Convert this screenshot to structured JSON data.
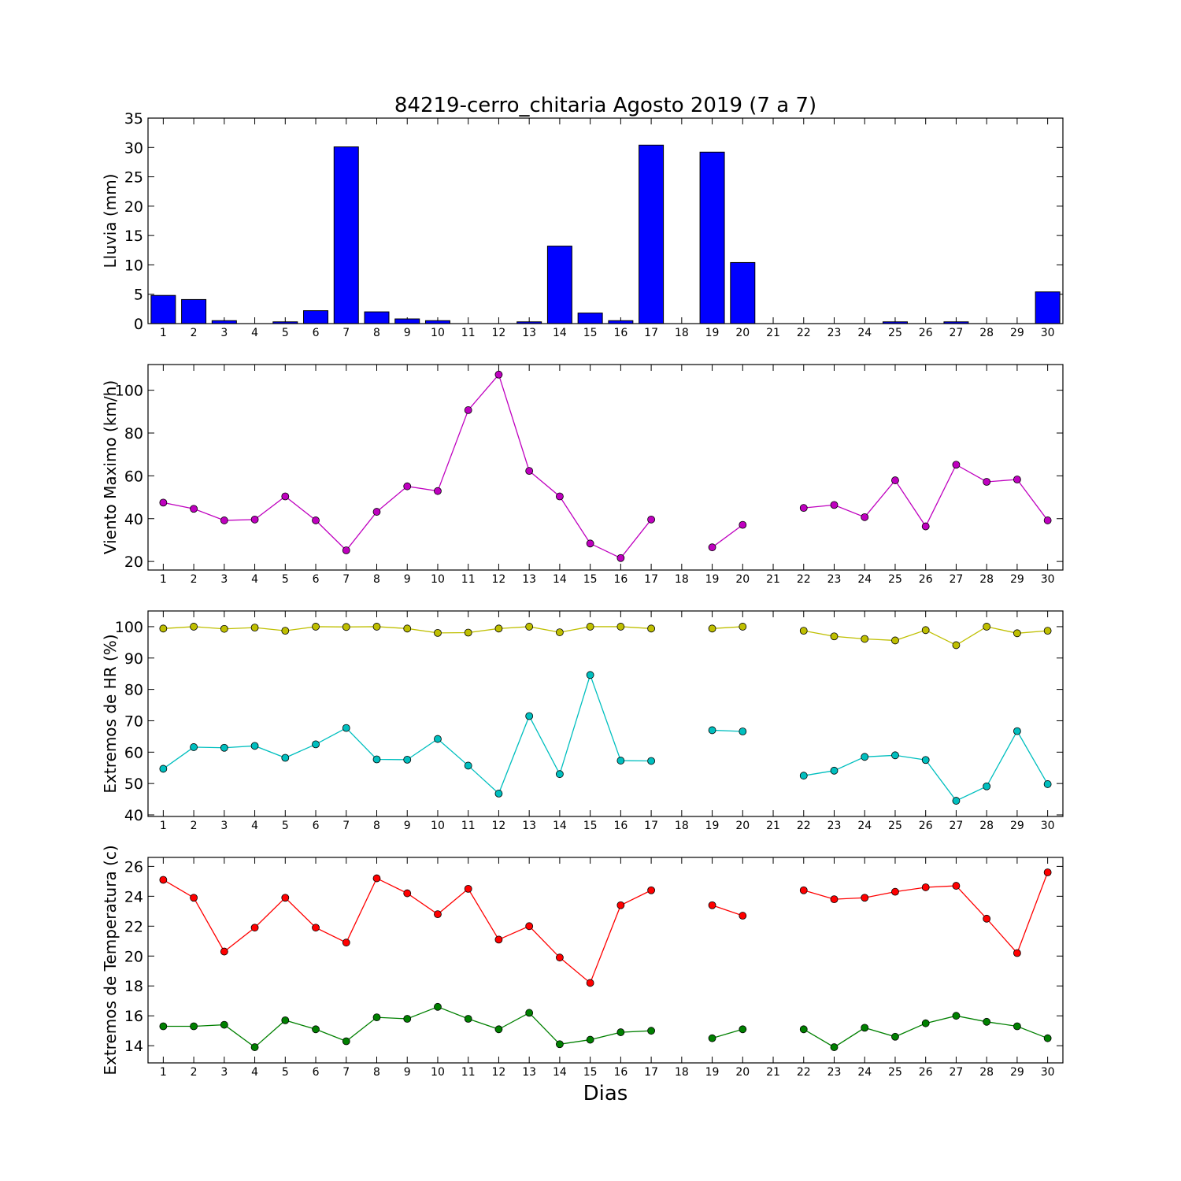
{
  "title": "84219-cerro_chitaria Agosto 2019  (7 a 7)",
  "xlabel": "Dias",
  "chart_data": [
    {
      "type": "bar",
      "ylabel": "Lluvia (mm)",
      "x": [
        1,
        2,
        3,
        4,
        5,
        6,
        7,
        8,
        9,
        10,
        11,
        12,
        13,
        14,
        15,
        16,
        17,
        18,
        19,
        20,
        21,
        22,
        23,
        24,
        25,
        26,
        27,
        28,
        29,
        30
      ],
      "xticks": [
        "1",
        "2",
        "3",
        "4",
        "5",
        "6",
        "7",
        "8",
        "9",
        "10",
        "11",
        "12",
        "13",
        "14",
        "15",
        "16",
        "17",
        "18",
        "19",
        "20",
        "21",
        "22",
        "23",
        "24",
        "25",
        "26",
        "27",
        "28",
        "29",
        "30"
      ],
      "ylim": [
        0,
        35
      ],
      "yticks": [
        0,
        5,
        10,
        15,
        20,
        25,
        30,
        35
      ],
      "series": [
        {
          "color": "#0000ff",
          "values": [
            4.8,
            4.1,
            0.5,
            0,
            0.3,
            2.2,
            30.1,
            2.0,
            0.8,
            0.5,
            0,
            0,
            0.3,
            13.2,
            1.8,
            0.5,
            30.4,
            0,
            29.2,
            10.4,
            0,
            0,
            0,
            0,
            0.3,
            0,
            0.3,
            0,
            0,
            5.4
          ]
        }
      ]
    },
    {
      "type": "line",
      "ylabel": "Viento Maximo (km/h)",
      "x": [
        1,
        2,
        3,
        4,
        5,
        6,
        7,
        8,
        9,
        10,
        11,
        12,
        13,
        14,
        15,
        16,
        17,
        18,
        19,
        20,
        21,
        22,
        23,
        24,
        25,
        26,
        27,
        28,
        29,
        30
      ],
      "xticks": [
        "1",
        "2",
        "3",
        "4",
        "5",
        "6",
        "7",
        "8",
        "9",
        "10",
        "11",
        "12",
        "13",
        "14",
        "15",
        "16",
        "17",
        "18",
        "19",
        "20",
        "21",
        "22",
        "23",
        "24",
        "25",
        "26",
        "27",
        "28",
        "29",
        "30"
      ],
      "ylim": [
        16,
        112
      ],
      "yticks": [
        20,
        40,
        60,
        80,
        100
      ],
      "series": [
        {
          "color": "#bf00bf",
          "values": [
            47.5,
            44.6,
            39.2,
            39.6,
            50.4,
            39.2,
            25.2,
            43.2,
            55.1,
            52.9,
            90.7,
            107.3,
            62.3,
            50.4,
            28.4,
            21.6,
            39.6,
            null,
            26.6,
            37.1,
            null,
            45.0,
            46.4,
            40.7,
            57.9,
            36.4,
            65.2,
            57.2,
            58.3,
            39.2
          ]
        }
      ]
    },
    {
      "type": "line",
      "ylabel": "Extremos de HR (%)",
      "x": [
        1,
        2,
        3,
        4,
        5,
        6,
        7,
        8,
        9,
        10,
        11,
        12,
        13,
        14,
        15,
        16,
        17,
        18,
        19,
        20,
        21,
        22,
        23,
        24,
        25,
        26,
        27,
        28,
        29,
        30
      ],
      "xticks": [
        "1",
        "2",
        "3",
        "4",
        "5",
        "6",
        "7",
        "8",
        "9",
        "10",
        "11",
        "12",
        "13",
        "14",
        "15",
        "16",
        "17",
        "18",
        "19",
        "20",
        "21",
        "22",
        "23",
        "24",
        "25",
        "26",
        "27",
        "28",
        "29",
        "30"
      ],
      "ylim": [
        39.5,
        105
      ],
      "yticks": [
        40,
        50,
        60,
        70,
        80,
        90,
        100
      ],
      "series": [
        {
          "color": "#bfbf00",
          "values": [
            99.4,
            100,
            99.3,
            99.7,
            98.7,
            100,
            99.9,
            100,
            99.4,
            98.0,
            98.1,
            99.4,
            100,
            98.2,
            100,
            100,
            99.4,
            null,
            99.4,
            100,
            null,
            98.7,
            96.9,
            96.1,
            95.6,
            98.9,
            94.1,
            100,
            97.9,
            98.7
          ]
        },
        {
          "color": "#00bfbf",
          "values": [
            54.7,
            61.6,
            61.4,
            62.0,
            58.2,
            62.5,
            67.7,
            57.7,
            57.6,
            64.2,
            55.7,
            46.8,
            71.5,
            53.0,
            84.6,
            57.3,
            57.2,
            null,
            67.0,
            66.6,
            null,
            52.5,
            54.1,
            58.5,
            59.0,
            57.5,
            44.5,
            49.1,
            66.7,
            49.8
          ]
        }
      ]
    },
    {
      "type": "line",
      "ylabel": "Extremos de Temperatura (c)",
      "x": [
        1,
        2,
        3,
        4,
        5,
        6,
        7,
        8,
        9,
        10,
        11,
        12,
        13,
        14,
        15,
        16,
        17,
        18,
        19,
        20,
        21,
        22,
        23,
        24,
        25,
        26,
        27,
        28,
        29,
        30
      ],
      "xticks": [
        "1",
        "2",
        "3",
        "4",
        "5",
        "6",
        "7",
        "8",
        "9",
        "10",
        "11",
        "12",
        "13",
        "14",
        "15",
        "16",
        "17",
        "18",
        "19",
        "20",
        "21",
        "22",
        "23",
        "24",
        "25",
        "26",
        "27",
        "28",
        "29",
        "30"
      ],
      "ylim": [
        12.85,
        26.6
      ],
      "yticks": [
        14,
        16,
        18,
        20,
        22,
        24,
        26
      ],
      "series": [
        {
          "color": "#ff0000",
          "values": [
            25.1,
            23.9,
            20.3,
            21.9,
            23.9,
            21.9,
            20.9,
            25.2,
            24.2,
            22.8,
            24.5,
            21.1,
            22.0,
            19.9,
            18.2,
            23.4,
            24.4,
            null,
            23.4,
            22.7,
            null,
            24.4,
            23.8,
            23.9,
            24.3,
            24.6,
            24.7,
            22.5,
            20.2,
            25.6
          ]
        },
        {
          "color": "#008000",
          "values": [
            15.3,
            15.3,
            15.4,
            13.9,
            15.7,
            15.1,
            14.3,
            15.9,
            15.8,
            16.6,
            15.8,
            15.1,
            16.2,
            14.1,
            14.4,
            14.9,
            15.0,
            null,
            14.5,
            15.1,
            null,
            15.1,
            13.9,
            15.2,
            14.6,
            15.5,
            16.0,
            15.6,
            15.3,
            14.5
          ]
        }
      ]
    }
  ]
}
